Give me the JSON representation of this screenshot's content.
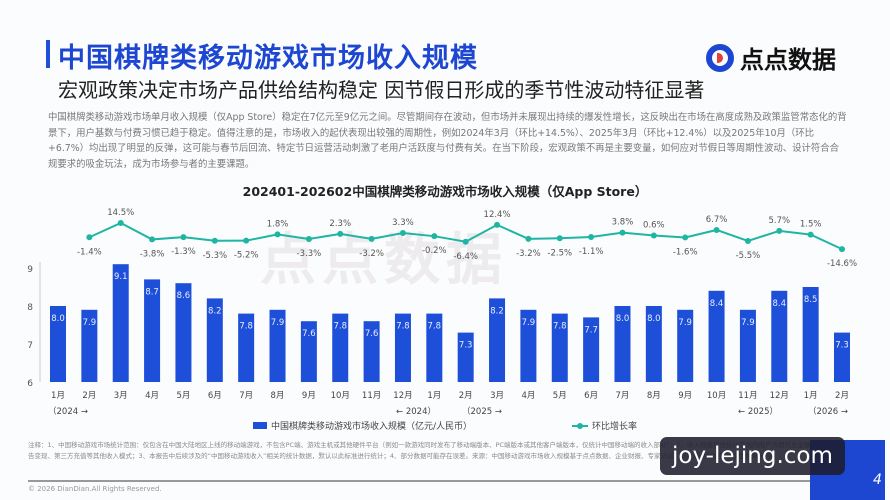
{
  "header": {
    "title": "中国棋牌类移动游戏市场收入规模",
    "subtitle": "宏观政策决定市场产品供给结构稳定 因节假日形成的季节性波动特征显著",
    "logo_text": "点点数据"
  },
  "paragraph": "中国棋牌类移动游戏市场单月收入规模（仅App Store）稳定在7亿元至9亿元之间。尽管期间存在波动，但市场并未展现出持续的爆发性增长，这反映出在市场在高度成熟及政策监管常态化的背景下，用户基数与付费习惯已趋于稳定。值得注意的是，市场收入的起伏表现出较强的周期性，例如2024年3月（环比+14.5%）、2025年3月（环比+12.4%）以及2025年10月（环比+6.7%）均出现了明显的反弹，这可能与春节后回流、特定节日运营活动刺激了老用户活跃度与付费有关。在当下阶段，宏观政策不再是主要变量，如何应对节假日等周期性波动、设计符合合规要求的吸金玩法，成为市场参与者的主要课题。",
  "chart_data": {
    "type": "bar+line",
    "title": "202401-202602中国棋牌类移动游戏市场收入规模（仅App Store）",
    "categories": [
      "1月",
      "2月",
      "3月",
      "4月",
      "5月",
      "6月",
      "7月",
      "8月",
      "9月",
      "10月",
      "11月",
      "12月",
      "1月",
      "2月",
      "3月",
      "4月",
      "5月",
      "6月",
      "7月",
      "8月",
      "9月",
      "10月",
      "11月",
      "12月",
      "1月",
      "2月"
    ],
    "year_labels": [
      "（2024 →",
      "← 2024）",
      "（2025 →",
      "← 2025）",
      "（2026 →"
    ],
    "ylim": [
      6,
      9.3
    ],
    "yticks": [
      "6",
      "7",
      "8",
      "9"
    ],
    "series": [
      {
        "name": "中国棋牌类移动游戏市场收入规模（亿元/人民币）",
        "type": "bar",
        "color": "#1e4fd8",
        "values": [
          8.0,
          7.9,
          9.1,
          8.7,
          8.6,
          8.2,
          7.8,
          7.9,
          7.6,
          7.8,
          7.6,
          7.8,
          7.8,
          7.3,
          8.2,
          7.9,
          7.8,
          7.7,
          8.0,
          8.0,
          7.9,
          8.4,
          7.9,
          8.4,
          8.5,
          7.3
        ]
      },
      {
        "name": "环比增长率",
        "type": "line",
        "color": "#1fb5a3",
        "unit": "%",
        "values": [
          null,
          -1.4,
          14.5,
          -3.8,
          -1.3,
          -5.3,
          -5.2,
          1.8,
          -3.3,
          2.3,
          -3.2,
          3.3,
          -0.2,
          -6.4,
          12.4,
          -3.2,
          -2.5,
          -1.1,
          3.8,
          0.6,
          -1.6,
          6.7,
          -5.5,
          5.7,
          1.5,
          -14.6
        ]
      }
    ]
  },
  "legend": {
    "bar": "中国棋牌类移动游戏市场收入规模（亿元/人民币）",
    "line": "环比增长率"
  },
  "chart_watermark": "点点数据",
  "notes": "注释：1、中国移动游戏市场统计范围：仅包含在中国大陆地区上线的移动端游戏，不包含PC端、游戏主机或其他硬件平台（例如一款游戏同时发布了移动端版本、PC端版本或其他客户端版本，仅统计中国移动端的收入部分）；2、收入规模包含统计范围内用户消费的总金额，不包含广告变现、第三方充值等其他收入模式；3、本报告中后续涉及的“中国移动游戏收入”相关的统计数据，默认以此标准进行统计；4、部分数据可能存在误差。来源：中国移动游戏市场收入规模基于点点数据、企业财报、专家访谈，根据点点数据统计模型核算所得。",
  "footer": {
    "copyright": "© 2026 DianDian.All Rights Reserved.",
    "page": "4",
    "watermark": "joy-lejing.com"
  }
}
